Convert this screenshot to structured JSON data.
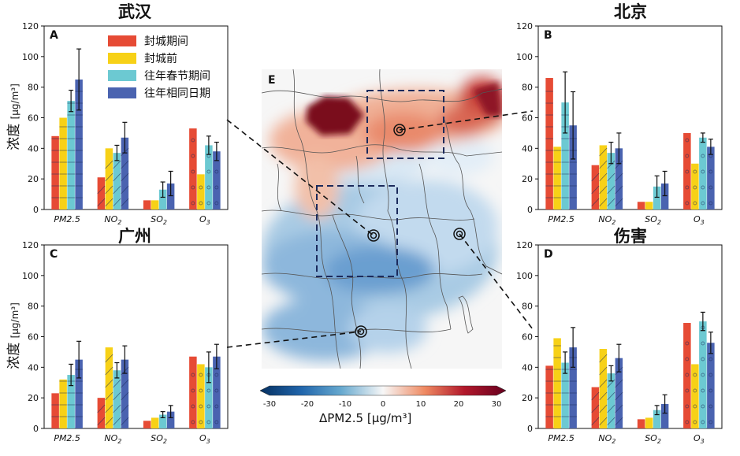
{
  "colors": {
    "lockdown": "#e64b35",
    "pre_lockdown": "#f7d117",
    "spring_festival": "#6cc9d2",
    "same_period": "#4a63b0"
  },
  "legend": [
    "封城期间",
    "封城前",
    "往年春节期间",
    "往年相同日期"
  ],
  "y_label": "浓度",
  "y_unit": "[μg/m³]",
  "colorbar": {
    "title": "ΔPM2.5  [μg/m³]",
    "ticks": [
      "-30",
      "-20",
      "-10",
      "0",
      "10",
      "20",
      "30"
    ]
  },
  "map": {
    "label": "E"
  },
  "chart_data": [
    {
      "type": "bar",
      "panel": "A",
      "title": "武汉",
      "categories": [
        "PM2.5",
        "NO2",
        "SO2",
        "O3"
      ],
      "ylim": [
        0,
        120
      ],
      "yticks": [
        0,
        20,
        40,
        60,
        80,
        100,
        120
      ],
      "series": [
        {
          "name": "封城期间",
          "values": [
            48,
            21,
            6,
            53
          ],
          "err": [
            0,
            0,
            0,
            0
          ]
        },
        {
          "name": "封城前",
          "values": [
            60,
            40,
            6,
            23
          ],
          "err": [
            0,
            0,
            0,
            0
          ]
        },
        {
          "name": "往年春节期间",
          "values": [
            71,
            37,
            13,
            42
          ],
          "err": [
            7,
            5,
            5,
            6
          ]
        },
        {
          "name": "往年相同日期",
          "values": [
            85,
            47,
            17,
            38
          ],
          "err": [
            20,
            10,
            8,
            6
          ]
        }
      ]
    },
    {
      "type": "bar",
      "panel": "B",
      "title": "北京",
      "categories": [
        "PM2.5",
        "NO2",
        "SO2",
        "O3"
      ],
      "ylim": [
        0,
        120
      ],
      "yticks": [
        0,
        20,
        40,
        60,
        80,
        100,
        120
      ],
      "series": [
        {
          "name": "封城期间",
          "values": [
            86,
            29,
            5,
            50
          ],
          "err": [
            0,
            0,
            0,
            0
          ]
        },
        {
          "name": "封城前",
          "values": [
            41,
            42,
            5,
            30
          ],
          "err": [
            0,
            0,
            0,
            0
          ]
        },
        {
          "name": "往年春节期间",
          "values": [
            70,
            37,
            15,
            47
          ],
          "err": [
            20,
            7,
            7,
            3
          ]
        },
        {
          "name": "往年相同日期",
          "values": [
            55,
            40,
            17,
            41
          ],
          "err": [
            22,
            10,
            8,
            5
          ]
        }
      ]
    },
    {
      "type": "bar",
      "panel": "C",
      "title": "广州",
      "categories": [
        "PM2.5",
        "NO2",
        "SO2",
        "O3"
      ],
      "ylim": [
        0,
        120
      ],
      "yticks": [
        0,
        20,
        40,
        60,
        80,
        100,
        120
      ],
      "series": [
        {
          "name": "封城期间",
          "values": [
            23,
            20,
            5,
            47
          ],
          "err": [
            0,
            0,
            0,
            0
          ]
        },
        {
          "name": "封城前",
          "values": [
            32,
            53,
            7,
            42
          ],
          "err": [
            0,
            0,
            0,
            0
          ]
        },
        {
          "name": "往年春节期间",
          "values": [
            35,
            38,
            9,
            40
          ],
          "err": [
            7,
            5,
            2,
            10
          ]
        },
        {
          "name": "往年相同日期",
          "values": [
            45,
            45,
            11,
            47
          ],
          "err": [
            12,
            9,
            4,
            8
          ]
        }
      ]
    },
    {
      "type": "bar",
      "panel": "D",
      "title": "伤害",
      "categories": [
        "PM2.5",
        "NO2",
        "SO2",
        "O3"
      ],
      "ylim": [
        0,
        120
      ],
      "yticks": [
        0,
        20,
        40,
        60,
        80,
        100,
        120
      ],
      "series": [
        {
          "name": "封城期间",
          "values": [
            41,
            27,
            6,
            69
          ],
          "err": [
            0,
            0,
            0,
            0
          ]
        },
        {
          "name": "封城前",
          "values": [
            59,
            52,
            7,
            42
          ],
          "err": [
            0,
            0,
            0,
            0
          ]
        },
        {
          "name": "往年春节期间",
          "values": [
            43,
            36,
            12,
            70
          ],
          "err": [
            7,
            5,
            3,
            6
          ]
        },
        {
          "name": "往年相同日期",
          "values": [
            53,
            46,
            16,
            56
          ],
          "err": [
            13,
            9,
            6,
            7
          ]
        }
      ]
    }
  ]
}
